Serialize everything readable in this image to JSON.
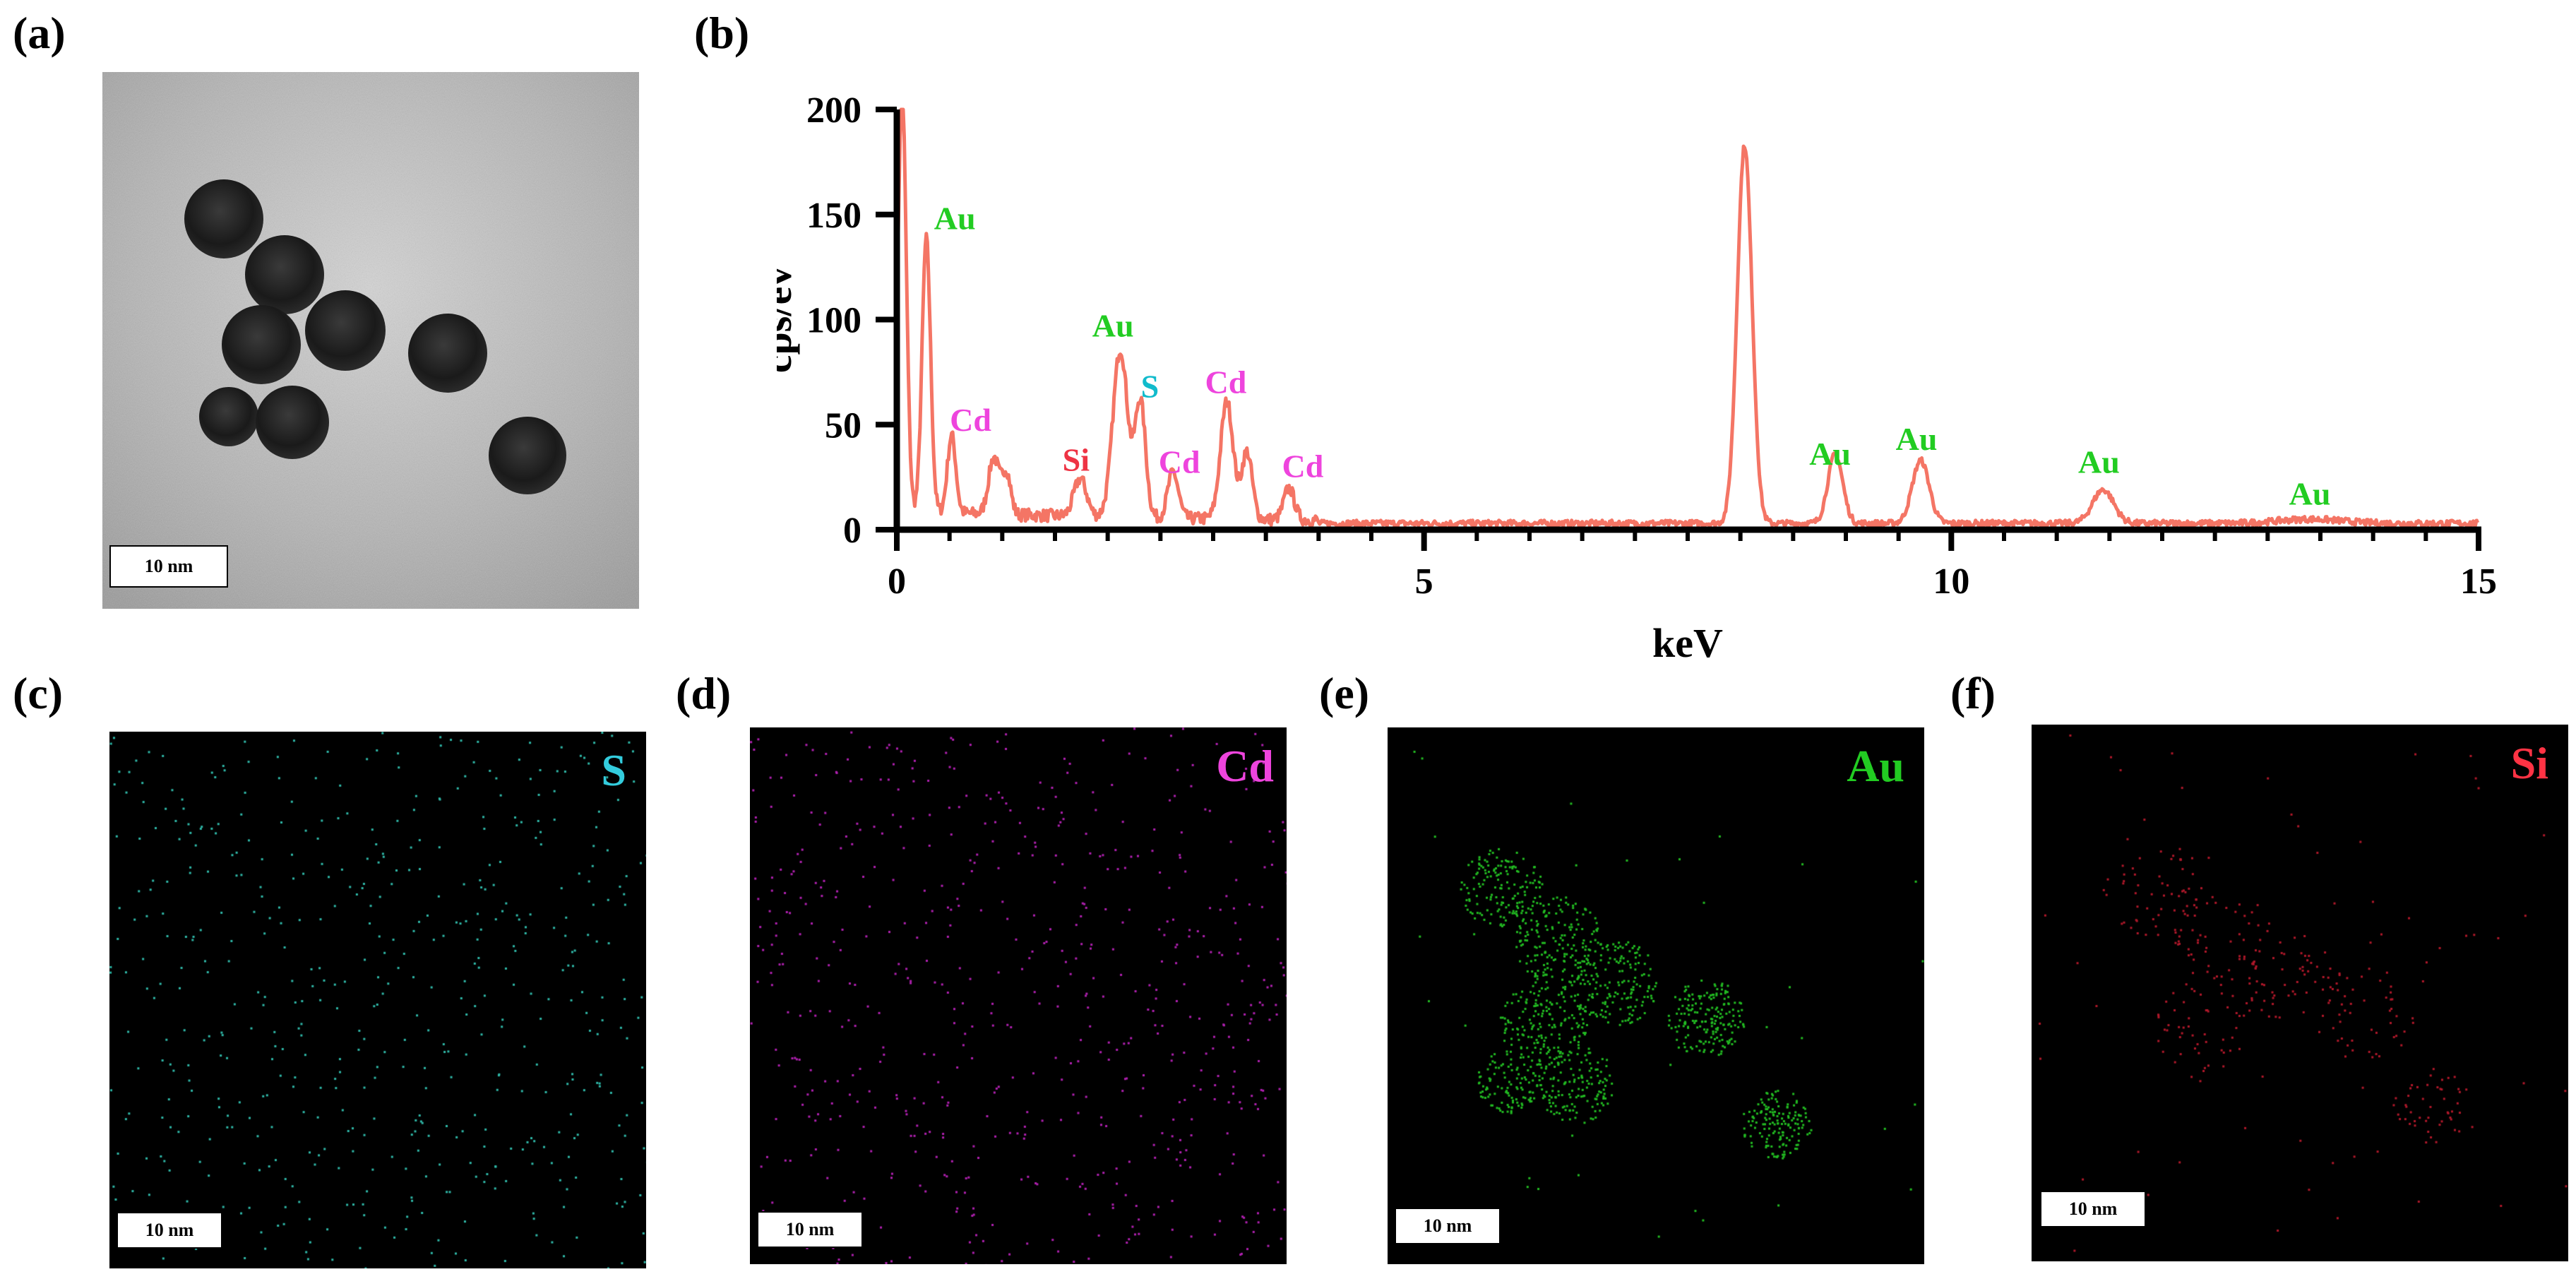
{
  "panels": {
    "a": {
      "label": "(a)",
      "scale_bar": "10 nm"
    },
    "b": {
      "label": "(b)"
    },
    "c": {
      "label": "(c)",
      "element": "S",
      "element_color": "#33ccdd",
      "dot_color": "#2fb8a8",
      "scale_bar": "10 nm"
    },
    "d": {
      "label": "(d)",
      "element": "Cd",
      "element_color": "#ee44dd",
      "dot_color": "#b020b0",
      "scale_bar": "10 nm"
    },
    "e": {
      "label": "(e)",
      "element": "Au",
      "element_color": "#22cc22",
      "dot_color": "#22bb22",
      "scale_bar": "10 nm"
    },
    "f": {
      "label": "(f)",
      "element": "Si",
      "element_color": "#ff3344",
      "dot_color": "#b0182a",
      "scale_bar": "10 nm"
    }
  },
  "chart_data": {
    "type": "line",
    "title": "",
    "xlabel": "keV",
    "ylabel": "cps/ev",
    "xlim": [
      0,
      15
    ],
    "ylim": [
      0,
      200
    ],
    "xticks": [
      0,
      5,
      10,
      15
    ],
    "yticks": [
      0,
      50,
      100,
      150,
      200
    ],
    "line_color": "#f47565",
    "baseline": 3,
    "peaks": [
      {
        "x": 0.05,
        "y": 200,
        "w": 0.04
      },
      {
        "x": 0.28,
        "y": 130,
        "w": 0.04
      },
      {
        "x": 0.52,
        "y": 37,
        "w": 0.04
      },
      {
        "x": 0.92,
        "y": 27,
        "w": 0.05
      },
      {
        "x": 1.04,
        "y": 20,
        "w": 0.04
      },
      {
        "x": 1.74,
        "y": 18,
        "w": 0.06
      },
      {
        "x": 2.12,
        "y": 80,
        "w": 0.07
      },
      {
        "x": 2.31,
        "y": 55,
        "w": 0.05
      },
      {
        "x": 2.62,
        "y": 22,
        "w": 0.05
      },
      {
        "x": 3.13,
        "y": 56,
        "w": 0.06
      },
      {
        "x": 3.32,
        "y": 32,
        "w": 0.05
      },
      {
        "x": 3.72,
        "y": 15,
        "w": 0.05
      },
      {
        "x": 8.04,
        "y": 180,
        "w": 0.07
      },
      {
        "x": 8.9,
        "y": 33,
        "w": 0.07
      },
      {
        "x": 9.71,
        "y": 30,
        "w": 0.08
      },
      {
        "x": 11.44,
        "y": 16,
        "w": 0.1
      },
      {
        "x": 13.4,
        "y": 2,
        "w": 0.3
      }
    ],
    "annotations": [
      {
        "text": "Au",
        "x": 0.55,
        "y": 143,
        "color": "#22cc22"
      },
      {
        "text": "Cd",
        "x": 0.7,
        "y": 47,
        "color": "#ee44dd"
      },
      {
        "text": "Si",
        "x": 1.7,
        "y": 28,
        "color": "#ee3344"
      },
      {
        "text": "Au",
        "x": 2.05,
        "y": 92,
        "color": "#22cc22"
      },
      {
        "text": "S",
        "x": 2.4,
        "y": 63,
        "color": "#11bbcc"
      },
      {
        "text": "Cd",
        "x": 2.68,
        "y": 27,
        "color": "#ee44dd"
      },
      {
        "text": "Cd",
        "x": 3.12,
        "y": 65,
        "color": "#ee44dd"
      },
      {
        "text": "Cd",
        "x": 3.85,
        "y": 25,
        "color": "#ee44dd"
      },
      {
        "text": "Au",
        "x": 8.85,
        "y": 31,
        "color": "#22cc22"
      },
      {
        "text": "Au",
        "x": 9.67,
        "y": 38,
        "color": "#22cc22"
      },
      {
        "text": "Au",
        "x": 11.4,
        "y": 27,
        "color": "#22cc22"
      },
      {
        "text": "Au",
        "x": 13.4,
        "y": 12,
        "color": "#22cc22"
      }
    ]
  }
}
